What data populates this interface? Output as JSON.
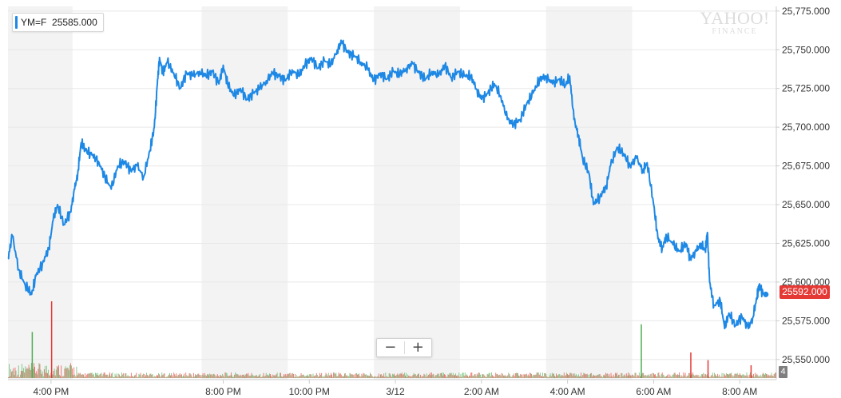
{
  "legend": {
    "symbol": "YM=F",
    "value": "25585.000",
    "color": "#1e88e5"
  },
  "watermark": {
    "line1": "YAHOO!",
    "line2": "FINANCE"
  },
  "last_price": {
    "label": "25592.000",
    "color": "#e53935"
  },
  "volume_badge": "4",
  "zoom": {
    "minus": "−",
    "plus": "+"
  },
  "chart_data": {
    "type": "line",
    "title": "",
    "xlabel": "",
    "ylabel": "",
    "symbol": "YM=F",
    "ylim": [
      25537,
      25778
    ],
    "y_ticks": [
      25550,
      25575,
      25600,
      25625,
      25650,
      25675,
      25700,
      25725,
      25750,
      25775
    ],
    "y_tick_labels": [
      "25,550.000",
      "25,575.000",
      "25,600.000",
      "25,625.000",
      "25,650.000",
      "25,675.000",
      "25,700.000",
      "25,725.000",
      "25,750.000",
      "25,775.000"
    ],
    "x_unit": "hours since 3:00 PM (3/11)",
    "x_range": [
      0,
      17.85
    ],
    "x_ticks": [
      {
        "x": 1,
        "label": "4:00 PM"
      },
      {
        "x": 5,
        "label": "8:00 PM"
      },
      {
        "x": 7,
        "label": "10:00 PM"
      },
      {
        "x": 9,
        "label": "3/12"
      },
      {
        "x": 11,
        "label": "2:00 AM"
      },
      {
        "x": 13,
        "label": "4:00 AM"
      },
      {
        "x": 15,
        "label": "6:00 AM"
      },
      {
        "x": 17,
        "label": "8:00 AM"
      }
    ],
    "shaded_bands": [
      [
        0,
        1.5
      ],
      [
        4.5,
        6.5
      ],
      [
        8.5,
        10.5
      ],
      [
        12.5,
        14.5
      ]
    ],
    "grid": true,
    "legend_position": "top-left",
    "line_color": "#1e88e5",
    "series": [
      {
        "name": "YM=F",
        "points": [
          [
            0.0,
            25615
          ],
          [
            0.1,
            25630
          ],
          [
            0.25,
            25608
          ],
          [
            0.4,
            25598
          ],
          [
            0.55,
            25592
          ],
          [
            0.65,
            25604
          ],
          [
            0.8,
            25612
          ],
          [
            0.95,
            25622
          ],
          [
            1.05,
            25640
          ],
          [
            1.15,
            25650
          ],
          [
            1.3,
            25637
          ],
          [
            1.45,
            25645
          ],
          [
            1.55,
            25660
          ],
          [
            1.62,
            25670
          ],
          [
            1.7,
            25690
          ],
          [
            1.8,
            25685
          ],
          [
            1.95,
            25682
          ],
          [
            2.1,
            25678
          ],
          [
            2.25,
            25668
          ],
          [
            2.4,
            25660
          ],
          [
            2.55,
            25675
          ],
          [
            2.7,
            25678
          ],
          [
            2.85,
            25672
          ],
          [
            3.0,
            25675
          ],
          [
            3.15,
            25668
          ],
          [
            3.3,
            25685
          ],
          [
            3.4,
            25700
          ],
          [
            3.47,
            25728
          ],
          [
            3.52,
            25745
          ],
          [
            3.6,
            25735
          ],
          [
            3.7,
            25742
          ],
          [
            3.85,
            25735
          ],
          [
            4.0,
            25725
          ],
          [
            4.15,
            25735
          ],
          [
            4.3,
            25733
          ],
          [
            4.45,
            25736
          ],
          [
            4.6,
            25733
          ],
          [
            4.75,
            25736
          ],
          [
            4.9,
            25728
          ],
          [
            5.0,
            25740
          ],
          [
            5.1,
            25728
          ],
          [
            5.25,
            25720
          ],
          [
            5.4,
            25725
          ],
          [
            5.55,
            25718
          ],
          [
            5.7,
            25722
          ],
          [
            5.85,
            25725
          ],
          [
            6.0,
            25730
          ],
          [
            6.15,
            25735
          ],
          [
            6.3,
            25733
          ],
          [
            6.45,
            25730
          ],
          [
            6.6,
            25737
          ],
          [
            6.75,
            25733
          ],
          [
            6.9,
            25740
          ],
          [
            7.05,
            25745
          ],
          [
            7.2,
            25738
          ],
          [
            7.35,
            25743
          ],
          [
            7.5,
            25740
          ],
          [
            7.65,
            25750
          ],
          [
            7.75,
            25755
          ],
          [
            7.9,
            25748
          ],
          [
            8.05,
            25746
          ],
          [
            8.2,
            25742
          ],
          [
            8.35,
            25738
          ],
          [
            8.5,
            25730
          ],
          [
            8.65,
            25735
          ],
          [
            8.8,
            25731
          ],
          [
            8.95,
            25736
          ],
          [
            9.1,
            25734
          ],
          [
            9.25,
            25738
          ],
          [
            9.4,
            25741
          ],
          [
            9.55,
            25735
          ],
          [
            9.7,
            25731
          ],
          [
            9.85,
            25736
          ],
          [
            10.0,
            25733
          ],
          [
            10.15,
            25740
          ],
          [
            10.3,
            25732
          ],
          [
            10.45,
            25736
          ],
          [
            10.6,
            25733
          ],
          [
            10.75,
            25733
          ],
          [
            10.9,
            25724
          ],
          [
            11.0,
            25718
          ],
          [
            11.15,
            25722
          ],
          [
            11.3,
            25728
          ],
          [
            11.45,
            25720
          ],
          [
            11.6,
            25705
          ],
          [
            11.75,
            25702
          ],
          [
            11.9,
            25705
          ],
          [
            12.05,
            25715
          ],
          [
            12.2,
            25722
          ],
          [
            12.35,
            25731
          ],
          [
            12.5,
            25733
          ],
          [
            12.65,
            25728
          ],
          [
            12.8,
            25731
          ],
          [
            12.95,
            25727
          ],
          [
            13.05,
            25733
          ],
          [
            13.15,
            25705
          ],
          [
            13.25,
            25695
          ],
          [
            13.35,
            25680
          ],
          [
            13.5,
            25670
          ],
          [
            13.6,
            25650
          ],
          [
            13.75,
            25655
          ],
          [
            13.9,
            25662
          ],
          [
            14.0,
            25675
          ],
          [
            14.15,
            25687
          ],
          [
            14.3,
            25683
          ],
          [
            14.45,
            25675
          ],
          [
            14.6,
            25680
          ],
          [
            14.75,
            25672
          ],
          [
            14.85,
            25677
          ],
          [
            15.0,
            25650
          ],
          [
            15.1,
            25628
          ],
          [
            15.2,
            25622
          ],
          [
            15.3,
            25630
          ],
          [
            15.45,
            25624
          ],
          [
            15.6,
            25620
          ],
          [
            15.75,
            25625
          ],
          [
            15.85,
            25615
          ],
          [
            16.0,
            25620
          ],
          [
            16.1,
            25625
          ],
          [
            16.2,
            25620
          ],
          [
            16.25,
            25632
          ],
          [
            16.3,
            25600
          ],
          [
            16.4,
            25585
          ],
          [
            16.55,
            25588
          ],
          [
            16.65,
            25570
          ],
          [
            16.75,
            25580
          ],
          [
            16.9,
            25572
          ],
          [
            17.05,
            25578
          ],
          [
            17.2,
            25570
          ],
          [
            17.3,
            25577
          ],
          [
            17.4,
            25590
          ],
          [
            17.45,
            25598
          ],
          [
            17.55,
            25592
          ]
        ]
      }
    ],
    "volume": {
      "color_up": "#4caf50",
      "color_down": "#e53935",
      "spikes": [
        [
          1.0,
          60,
          "down"
        ],
        [
          0.55,
          36,
          "up"
        ],
        [
          14.7,
          42,
          "up"
        ],
        [
          15.85,
          20,
          "down"
        ],
        [
          16.25,
          14,
          "down"
        ],
        [
          17.25,
          10,
          "down"
        ]
      ]
    }
  }
}
